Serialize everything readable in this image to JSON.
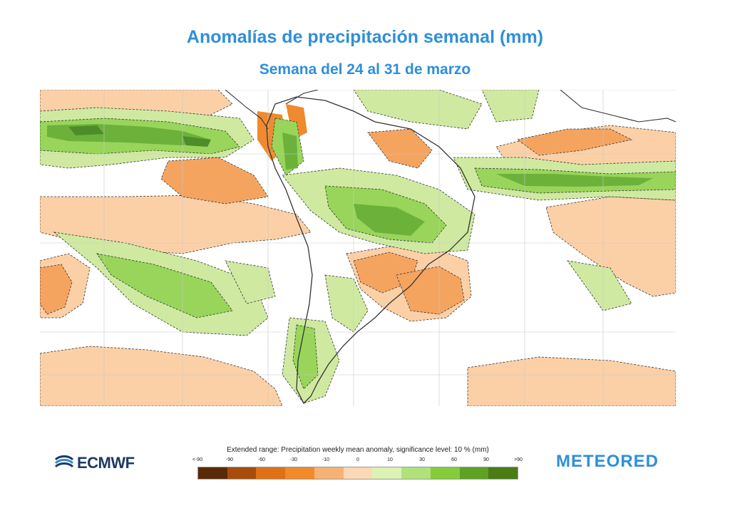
{
  "header": {
    "title": "Anomalías de precipitación semanal (mm)",
    "subtitle": "Semana del 24 al 31 de marzo"
  },
  "map": {
    "region": "South America",
    "colors": {
      "ocean_bg": "#ffffff",
      "light_orange": "#fcd0a6",
      "orange": "#f5a460",
      "strong_orange": "#ef8a2e",
      "light_green": "#cfeaa0",
      "green": "#98d55a",
      "dark_green": "#6cb13a",
      "darkest_green": "#4e8c2a",
      "grid": "#c8c8c8",
      "coast": "#333333"
    }
  },
  "legend": {
    "title": "Extended range: Precipitation weekly mean anomaly, significance level: 10 % (mm)",
    "ticks": [
      "<-90",
      "-90",
      "-60",
      "-30",
      "-10",
      "0",
      "10",
      "30",
      "60",
      "90",
      ">90"
    ],
    "colors": [
      "#5a2a08",
      "#a64d0c",
      "#e07016",
      "#f08a2a",
      "#f6b274",
      "#fdd8b4",
      "#dcf2b4",
      "#b0e27c",
      "#84cc3c",
      "#5ea224",
      "#4a7d14"
    ]
  },
  "logos": {
    "left": "ECMWF",
    "right": "METEORED"
  }
}
